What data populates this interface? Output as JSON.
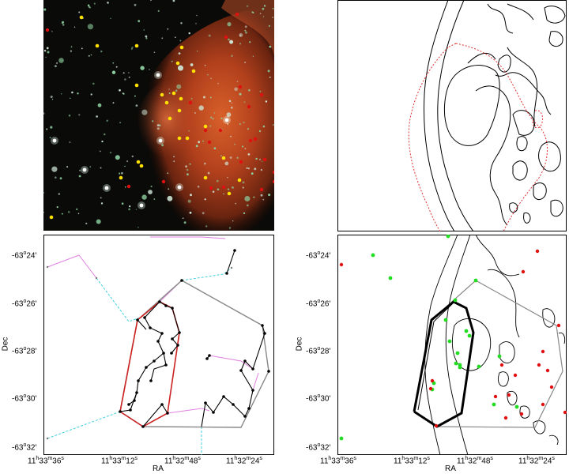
{
  "figure": {
    "panels": [
      "image",
      "contour",
      "tree",
      "dots"
    ],
    "axes": {
      "xlabel": "RA",
      "ylabel": "Dec",
      "x_ticks": [
        "11h33m36s",
        "11h33m12s",
        "11h32m48s",
        "11h32m24s"
      ],
      "x_ticks_display": [
        {
          "h": "11",
          "m": "33",
          "s": "36"
        },
        {
          "h": "11",
          "m": "33",
          "s": "12"
        },
        {
          "h": "11",
          "m": "32",
          "s": "48"
        },
        {
          "h": "11",
          "m": "32",
          "s": "24"
        }
      ],
      "y_ticks": [
        "-63°24'",
        "-63°26'",
        "-63°28'",
        "-63°30'",
        "-63°32'"
      ],
      "y_ticks_display": [
        {
          "deg": "-63",
          "min": "24'"
        },
        {
          "deg": "-63",
          "min": "26'"
        },
        {
          "deg": "-63",
          "min": "28'"
        },
        {
          "deg": "-63",
          "min": "30'"
        },
        {
          "deg": "-63",
          "min": "32'"
        }
      ]
    },
    "colors": {
      "nebula": "#b8401a",
      "sky": "#0a0a08",
      "yellow_marker": "#ffe000",
      "red_marker": "#e01010",
      "green_marker": "#22dd22",
      "mst_edge": "#000000",
      "hull_red": "#cc2222",
      "hull_gray": "#888888",
      "pink_edge": "#e080e0",
      "cyan_edge": "#40d0e0"
    }
  }
}
